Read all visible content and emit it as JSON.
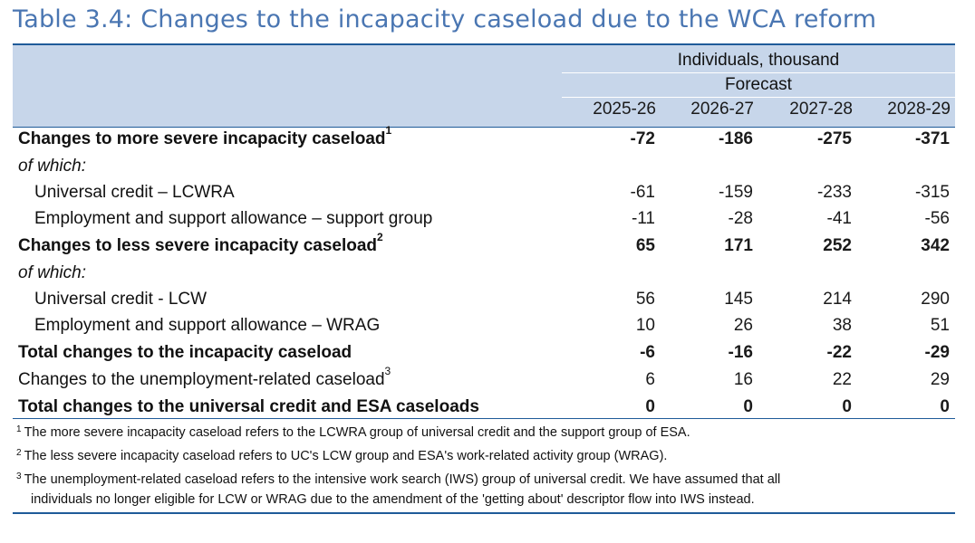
{
  "title": "Table 3.4: Changes to the incapacity caseload due to the WCA reform",
  "header": {
    "unit": "Individuals, thousand",
    "forecast": "Forecast",
    "years": [
      "2025-26",
      "2026-27",
      "2027-28",
      "2028-29"
    ]
  },
  "rows": [
    {
      "label": "Changes to more severe incapacity caseload",
      "sup": "1",
      "values": [
        "-72",
        "-186",
        "-275",
        "-371"
      ]
    },
    {
      "label": "of which:"
    },
    {
      "label": "Universal credit – LCWRA",
      "values": [
        "-61",
        "-159",
        "-233",
        "-315"
      ]
    },
    {
      "label": "Employment and support allowance – support group",
      "values": [
        "-11",
        "-28",
        "-41",
        "-56"
      ]
    },
    {
      "label": "Changes to less severe incapacity caseload",
      "sup": "2",
      "values": [
        "65",
        "171",
        "252",
        "342"
      ]
    },
    {
      "label": "of which:"
    },
    {
      "label": "Universal credit - LCW",
      "values": [
        "56",
        "145",
        "214",
        "290"
      ]
    },
    {
      "label": "Employment and support allowance – WRAG",
      "values": [
        "10",
        "26",
        "38",
        "51"
      ]
    },
    {
      "label": "Total changes to the incapacity caseload",
      "values": [
        "-6",
        "-16",
        "-22",
        "-29"
      ]
    },
    {
      "label": "Changes to the unemployment-related caseload",
      "sup": "3",
      "values": [
        "6",
        "16",
        "22",
        "29"
      ]
    },
    {
      "label": "Total changes to the universal credit and ESA caseloads",
      "values": [
        "0",
        "0",
        "0",
        "0"
      ]
    }
  ],
  "footnotes": [
    {
      "mark": "1",
      "text": "The more severe incapacity caseload refers to the LCWRA group of universal credit and the support group of ESA."
    },
    {
      "mark": "2",
      "text": "The less severe incapacity caseload refers to UC's LCW group and ESA's work-related activity group (WRAG)."
    },
    {
      "mark": "3",
      "text": "The unemployment-related caseload refers to the intensive work search (IWS) group of universal credit. We have assumed that all",
      "text2": "individuals no longer eligible for LCW or WRAG due to the amendment of the 'getting about' descriptor flow into IWS instead."
    }
  ],
  "colors": {
    "accent": "#1f5b99",
    "title": "#4a76b2",
    "header_bg": "#c7d6ea"
  }
}
